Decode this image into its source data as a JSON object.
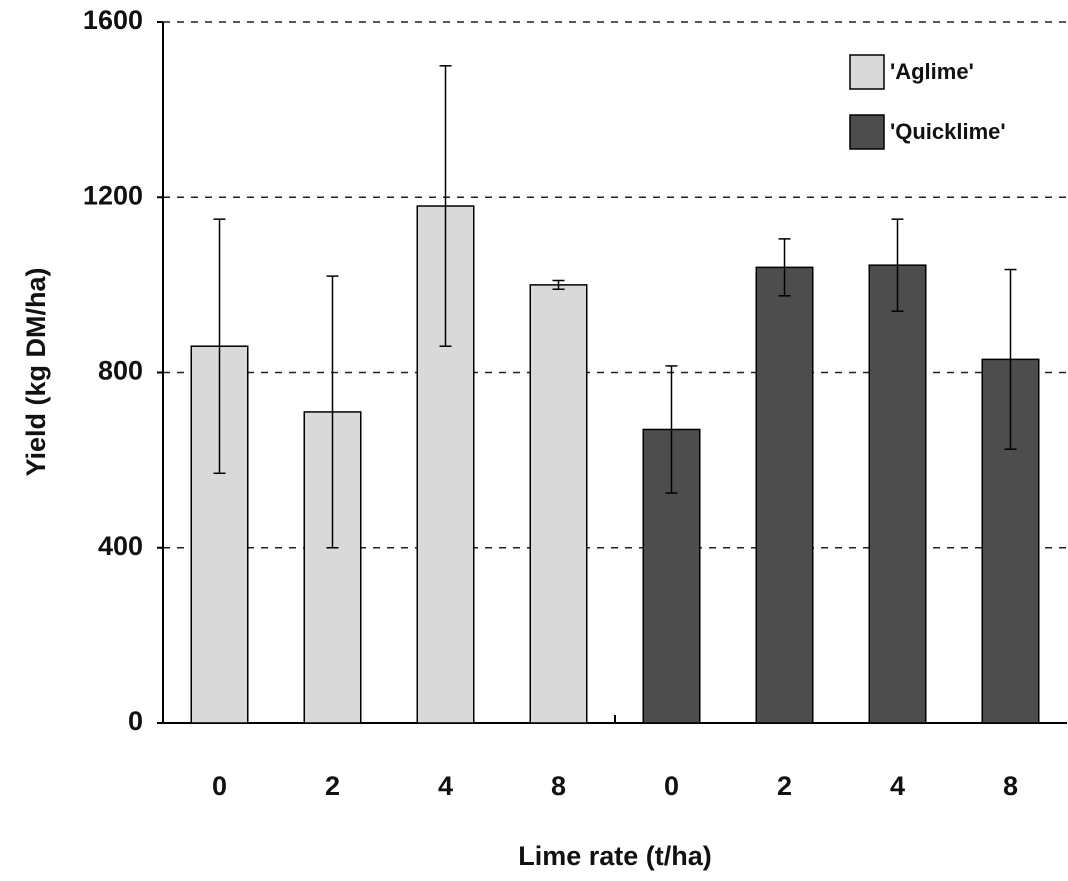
{
  "chart_data": {
    "type": "bar",
    "y_label": "Yield (kg DM/ha)",
    "x_label": "Lime rate (t/ha)",
    "categories": [
      "0",
      "2",
      "4",
      "8",
      "0",
      "2",
      "4",
      "8"
    ],
    "series": [
      {
        "name": "'Aglime'",
        "color": "#d9d9d9",
        "values": [
          860,
          710,
          1180,
          1000,
          null,
          null,
          null,
          null
        ],
        "errors": [
          290,
          310,
          320,
          10,
          null,
          null,
          null,
          null
        ]
      },
      {
        "name": "'Quicklime'",
        "color": "#4d4d4d",
        "values": [
          null,
          null,
          null,
          null,
          670,
          1040,
          1045,
          830
        ],
        "errors": [
          null,
          null,
          null,
          null,
          145,
          65,
          105,
          205
        ]
      }
    ],
    "ylim": [
      0,
      1600
    ],
    "yticks": [
      0,
      400,
      800,
      1200,
      1600
    ],
    "grid": true,
    "legend": "upper right"
  }
}
